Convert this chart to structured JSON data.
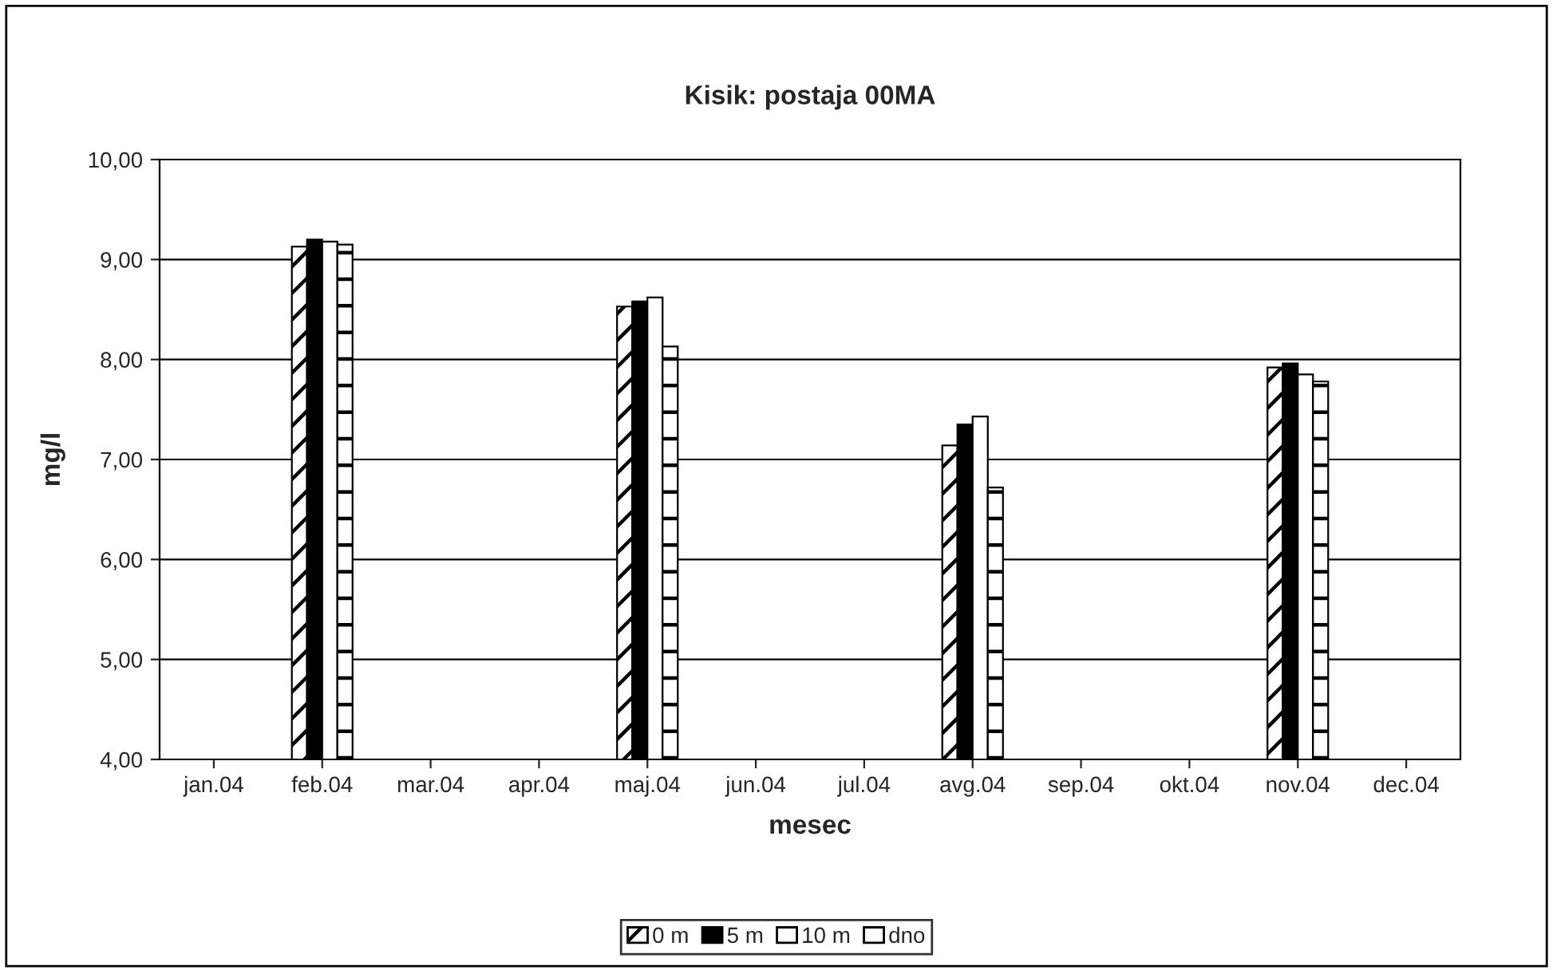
{
  "chart_data": {
    "type": "bar",
    "title": "Kisik: postaja 00MA",
    "xlabel": "mesec",
    "ylabel": "mg/l",
    "categories": [
      "jan.04",
      "feb.04",
      "mar.04",
      "apr.04",
      "maj.04",
      "jun.04",
      "jul.04",
      "avg.04",
      "sep.04",
      "okt.04",
      "nov.04",
      "dec.04"
    ],
    "series": [
      {
        "name": "0 m",
        "color": "#000000",
        "values": [
          null,
          9.13,
          null,
          null,
          8.53,
          null,
          null,
          7.14,
          null,
          null,
          7.92,
          null
        ]
      },
      {
        "name": "5 m",
        "color": "#000000",
        "values": [
          null,
          9.2,
          null,
          null,
          8.58,
          null,
          null,
          7.35,
          null,
          null,
          7.96,
          null
        ]
      },
      {
        "name": "10 m",
        "color": "#ffffff",
        "values": [
          null,
          9.18,
          null,
          null,
          8.62,
          null,
          null,
          7.43,
          null,
          null,
          7.85,
          null
        ]
      },
      {
        "name": "dno",
        "color": "#000000",
        "values": [
          null,
          9.15,
          null,
          null,
          8.13,
          null,
          null,
          6.72,
          null,
          null,
          7.78,
          null
        ]
      }
    ],
    "ylim": [
      4,
      10
    ],
    "yticks": [
      {
        "value": 4,
        "label": "4,00"
      },
      {
        "value": 5,
        "label": "5,00"
      },
      {
        "value": 6,
        "label": "6,00"
      },
      {
        "value": 7,
        "label": "7,00"
      },
      {
        "value": 8,
        "label": "8,00"
      },
      {
        "value": 9,
        "label": "9,00"
      },
      {
        "value": 10,
        "label": "10,00"
      }
    ],
    "grid": "y",
    "legend": "bottom"
  }
}
